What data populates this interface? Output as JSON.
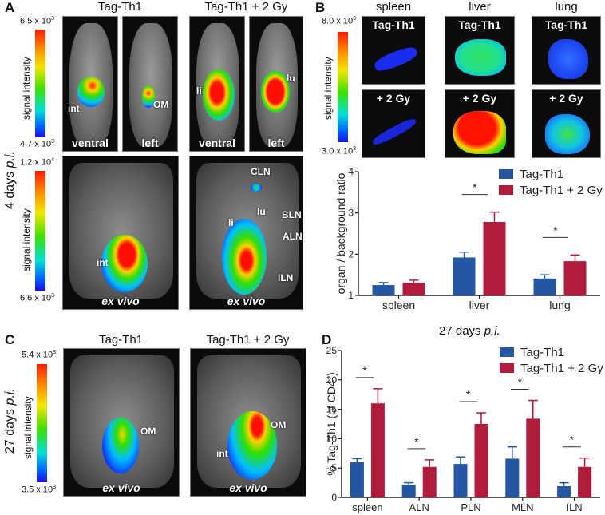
{
  "panel_a": {
    "letter": "A",
    "group_titles": [
      "Tag-Th1",
      "Tag-Th1 + 2 Gy"
    ],
    "row_label": "4 days",
    "row_label_italic": "p.i.",
    "colorbar_top": {
      "label": "signal intensity",
      "max": "6.5 x 10",
      "max_exp": "3",
      "min": "4.7 x 10",
      "min_exp": "3"
    },
    "colorbar_bottom": {
      "label": "signal intensity",
      "max": "1.2 x 10",
      "max_exp": "4",
      "min": "6.6 x 10",
      "min_exp": "3"
    },
    "in_vivo_images": [
      {
        "view": "ventral",
        "annotations": [
          "int"
        ]
      },
      {
        "view": "left",
        "annotations": [
          "OM"
        ]
      },
      {
        "view": "ventral",
        "annotations": [
          "li"
        ]
      },
      {
        "view": "left",
        "annotations": [
          "lu"
        ]
      }
    ],
    "ex_vivo_images": [
      {
        "label": "ex vivo",
        "annotations": [
          "int"
        ]
      },
      {
        "label": "ex vivo",
        "annotations": [
          "CLN",
          "lu",
          "li",
          "BLN",
          "ALN",
          "ILN"
        ]
      }
    ]
  },
  "panel_b": {
    "letter": "B",
    "organ_titles": [
      "spleen",
      "liver",
      "lung"
    ],
    "row_labels": [
      "Tag-Th1",
      "+ 2 Gy"
    ],
    "colorbar": {
      "label": "signal intensity",
      "max": "8.0 x 10",
      "max_exp": "3",
      "min": "3.0 x 10",
      "min_exp": "3"
    }
  },
  "panel_c": {
    "letter": "C",
    "group_titles": [
      "Tag-Th1",
      "Tag-Th1 + 2 Gy"
    ],
    "row_label": "27 days",
    "row_label_italic": "p.i.",
    "colorbar": {
      "label": "signal intensity",
      "max": "5.4 x 10",
      "max_exp": "3",
      "min": "3.5 x 10",
      "min_exp": "3"
    },
    "images": [
      {
        "label": "ex vivo",
        "annotations": [
          "OM"
        ]
      },
      {
        "label": "ex vivo",
        "annotations": [
          "OM",
          "int"
        ]
      }
    ]
  },
  "panel_d": {
    "letter": "D",
    "title": "27 days",
    "title_italic": "p.i."
  },
  "colors": {
    "tag_th1": "#2456a4",
    "tag_th1_2gy": "#b01c3c"
  },
  "chart_data": [
    {
      "type": "bar",
      "panel": "B",
      "title": "",
      "xlabel": "",
      "ylabel": "organ / background ratio",
      "categories": [
        "spleen",
        "liver",
        "lung"
      ],
      "ylim": [
        1,
        4
      ],
      "yticks": [
        1,
        2,
        3,
        4
      ],
      "grid": false,
      "legend": "top-right",
      "series": [
        {
          "name": "Tag-Th1",
          "values": [
            1.25,
            1.92,
            1.41
          ],
          "error_upper": [
            1.31,
            2.05,
            1.5
          ]
        },
        {
          "name": "Tag-Th1 + 2 Gy",
          "values": [
            1.31,
            2.78,
            1.83
          ],
          "error_upper": [
            1.37,
            3.02,
            1.98
          ]
        }
      ],
      "significance": [
        {
          "category": "liver",
          "label": "*"
        },
        {
          "category": "lung",
          "label": "*"
        }
      ]
    },
    {
      "type": "bar",
      "panel": "D",
      "title": "27 days p.i.",
      "xlabel": "",
      "ylabel": "% Tag-Th1 (of CD4+)",
      "categories": [
        "spleen",
        "ALN",
        "PLN",
        "MLN",
        "ILN"
      ],
      "ylim": [
        0,
        25
      ],
      "yticks": [
        0,
        5,
        10,
        15,
        20,
        25
      ],
      "grid": false,
      "legend": "top-right",
      "series": [
        {
          "name": "Tag-Th1",
          "values": [
            6.0,
            2.1,
            5.7,
            6.6,
            1.9
          ],
          "error_upper": [
            6.6,
            2.5,
            6.9,
            8.6,
            2.5
          ]
        },
        {
          "name": "Tag-Th1 + 2 Gy",
          "values": [
            16.0,
            5.2,
            12.5,
            13.4,
            5.2
          ],
          "error_upper": [
            18.5,
            6.4,
            14.4,
            16.5,
            6.7
          ]
        }
      ],
      "significance": [
        {
          "category": "spleen",
          "label": "*"
        },
        {
          "category": "ALN",
          "label": "*"
        },
        {
          "category": "PLN",
          "label": "*"
        },
        {
          "category": "MLN",
          "label": "*"
        },
        {
          "category": "ILN",
          "label": "*"
        }
      ]
    }
  ]
}
